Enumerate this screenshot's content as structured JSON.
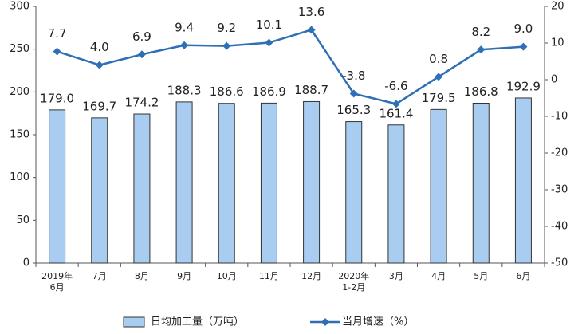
{
  "chart_data": {
    "type": "bar",
    "categories": [
      "2019年\n6月",
      "7月",
      "8月",
      "9月",
      "10月",
      "11月",
      "12月",
      "2020年\n1-2月",
      "3月",
      "4月",
      "5月",
      "6月"
    ],
    "series": [
      {
        "name": "日均加工量（万吨）",
        "type": "bar",
        "color": "#a9cdf0",
        "values": [
          179.0,
          169.7,
          174.2,
          188.3,
          186.6,
          186.9,
          188.7,
          165.3,
          161.4,
          179.5,
          186.8,
          192.9
        ],
        "value_labels": [
          "179.0",
          "169.7",
          "174.2",
          "188.3",
          "186.6",
          "186.9",
          "188.7",
          "165.3",
          "161.4",
          "179.5",
          "186.8",
          "192.9"
        ]
      },
      {
        "name": "当月增速（%）",
        "type": "line",
        "axis": "y2",
        "color": "#2e6fb5",
        "values": [
          7.7,
          4.0,
          6.9,
          9.4,
          9.2,
          10.1,
          13.6,
          -3.8,
          -6.6,
          0.8,
          8.2,
          9.0
        ],
        "value_labels": [
          "7.7",
          "4.0",
          "6.9",
          "9.4",
          "9.2",
          "10.1",
          "13.6",
          "-3.8",
          "-6.6",
          "0.8",
          "8.2",
          "9.0"
        ]
      }
    ],
    "ylim": [
      0,
      300
    ],
    "yticks": [
      0,
      50,
      100,
      150,
      200,
      250,
      300
    ],
    "y2lim": [
      -50,
      20
    ],
    "y2ticks": [
      -50,
      -40,
      -30,
      -20,
      -10,
      0,
      10,
      20
    ],
    "grid": false,
    "legend": "bottom"
  }
}
